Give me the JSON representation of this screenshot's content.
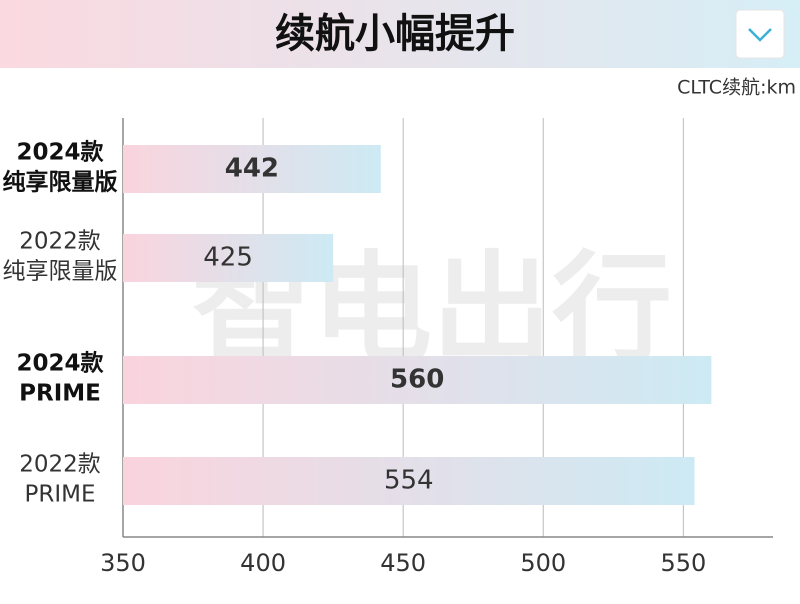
{
  "chart_data": {
    "type": "hbar",
    "title": "续航小幅提升",
    "unit_label": "CLTC续航:km",
    "watermark": "智电出行",
    "categories": [
      [
        "2024款",
        "纯享限量版"
      ],
      [
        "2022款",
        "纯享限量版"
      ],
      [
        "2024款",
        "PRIME"
      ],
      [
        "2022款",
        "PRIME"
      ]
    ],
    "values": [
      442,
      425,
      560,
      554
    ],
    "emphasis": [
      true,
      false,
      true,
      false
    ],
    "color_start": "#fad4dd",
    "color_end": "#cdeaf4",
    "xlim": [
      350,
      582
    ],
    "xticks": [
      350,
      400,
      450,
      500,
      550
    ],
    "grid": true
  }
}
